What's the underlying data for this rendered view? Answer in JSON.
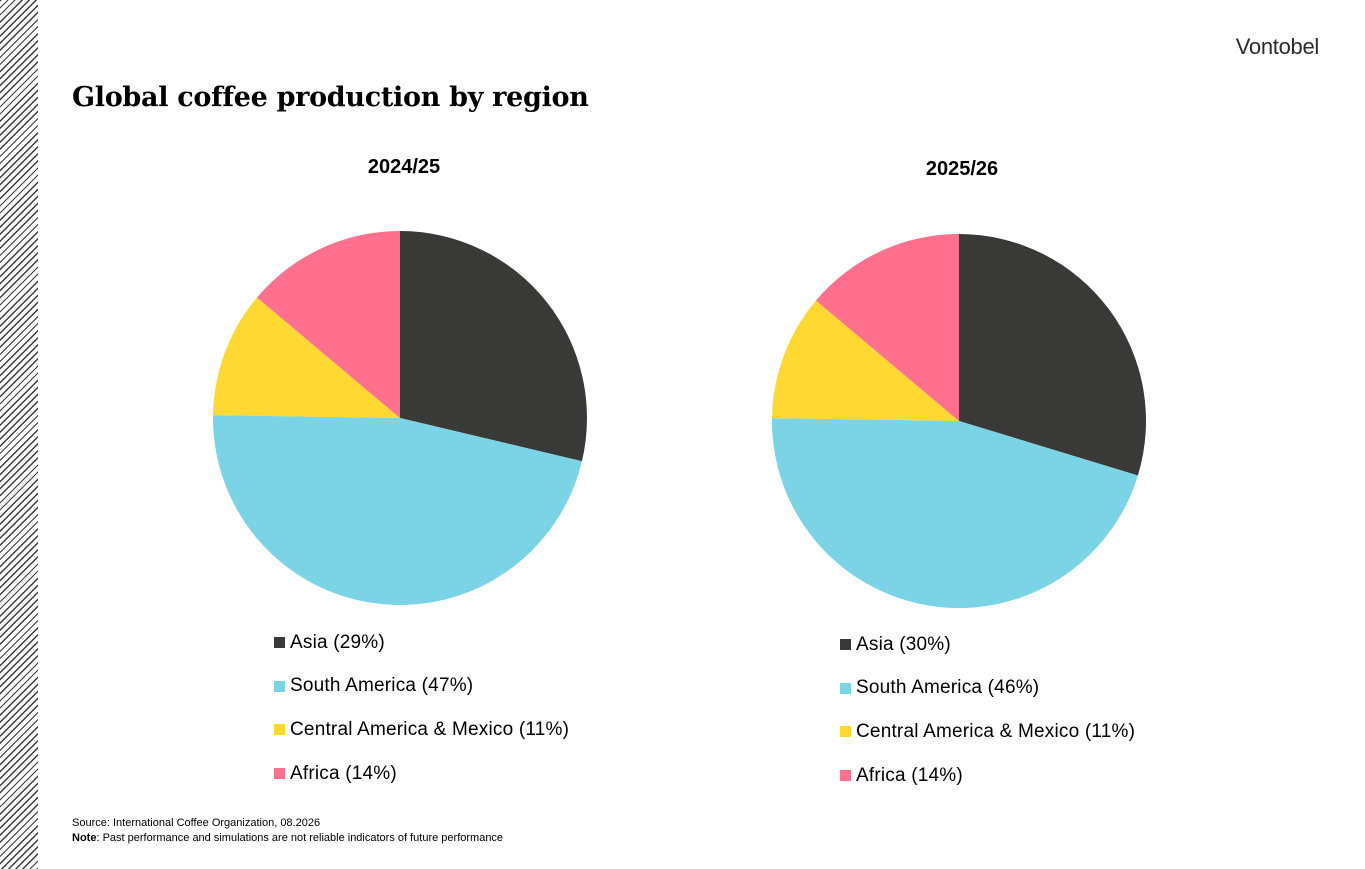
{
  "page": {
    "title": "Global coffee production by region",
    "logo": "Vontobel",
    "source": "Source: International Coffee Organization, 08.2026",
    "note_label": "Note",
    "note_text": ": Past performance and simulations are not reliable indicators of future performance"
  },
  "chart_data": [
    {
      "type": "pie",
      "title": "2024/25",
      "categories": [
        "Asia",
        "South America",
        "Central America & Mexico",
        "Africa"
      ],
      "values": [
        29,
        47,
        11,
        14
      ],
      "legend_labels": [
        "Asia (29%)",
        "South America (47%)",
        "Central America & Mexico (11%)",
        "Africa (14%)"
      ],
      "legend_position": "bottom",
      "colors": [
        "#393a37",
        "#7bd3e6",
        "#ffd932",
        "#fe708e"
      ]
    },
    {
      "type": "pie",
      "title": "2025/26",
      "categories": [
        "Asia",
        "South America",
        "Central America & Mexico",
        "Africa"
      ],
      "values": [
        30,
        46,
        11,
        14
      ],
      "legend_labels": [
        "Asia (30%)",
        "South America (46%)",
        "Central America & Mexico (11%)",
        "Africa (14%)"
      ],
      "legend_position": "bottom",
      "colors": [
        "#393a37",
        "#7bd3e6",
        "#ffd932",
        "#fe708e"
      ]
    }
  ]
}
